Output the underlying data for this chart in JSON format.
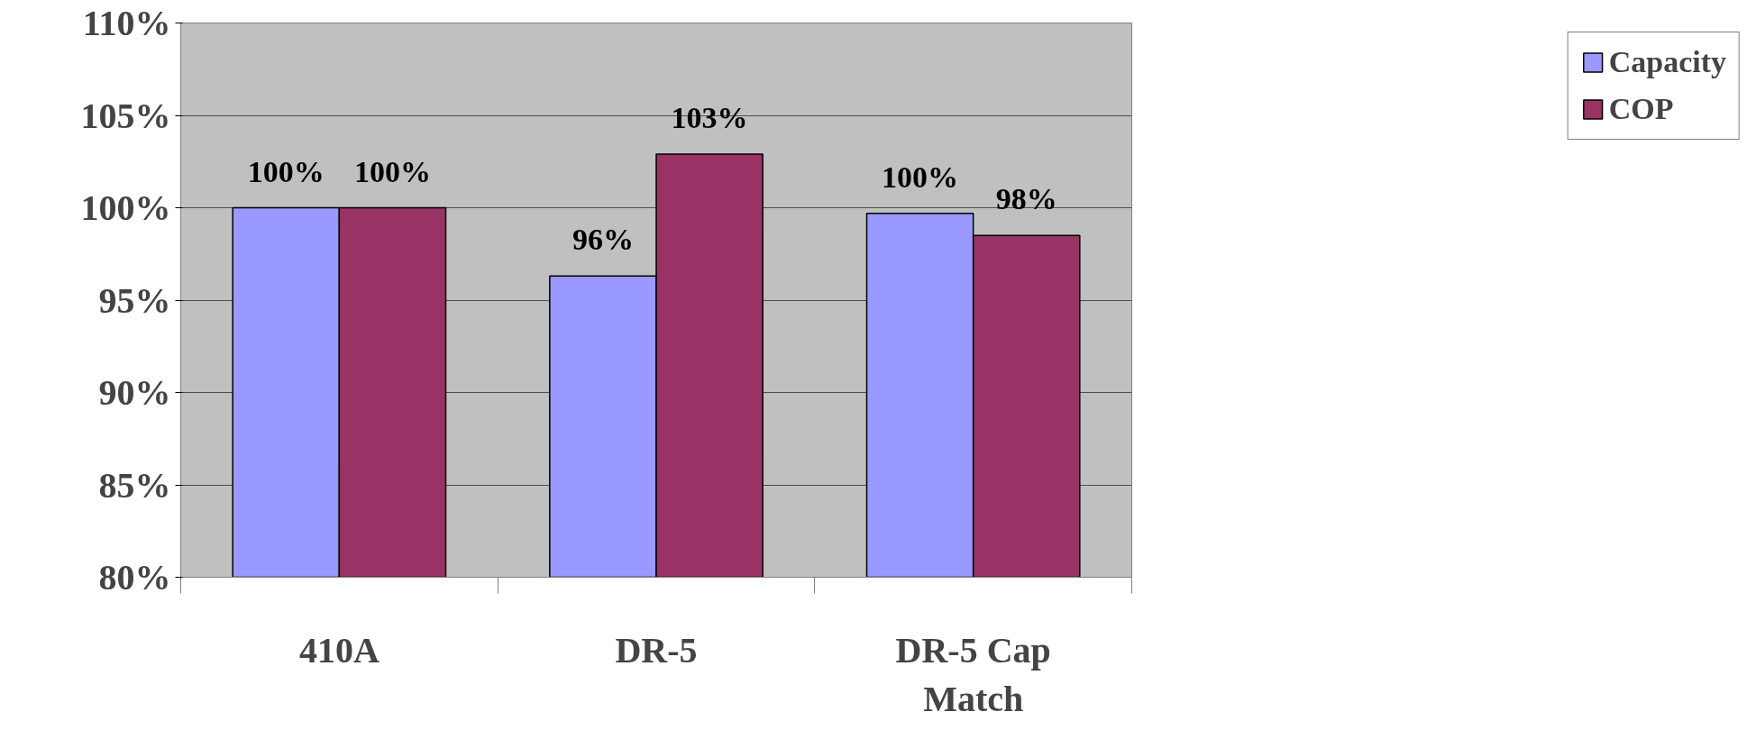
{
  "chart_data": {
    "type": "bar",
    "categories": [
      "410A",
      "DR-5",
      "DR-5 Cap Match"
    ],
    "series": [
      {
        "name": "Capacity",
        "color": "#9999ff",
        "values": [
          100,
          96.3,
          99.7
        ],
        "value_labels": [
          "100%",
          "96%",
          "100%"
        ]
      },
      {
        "name": "COP",
        "color": "#993366",
        "values": [
          100,
          102.9,
          98.5
        ],
        "value_labels": [
          "100%",
          "103%",
          "98%"
        ]
      }
    ],
    "ylim": [
      80,
      110
    ],
    "yticks": [
      {
        "value": 80,
        "label": "80%"
      },
      {
        "value": 85,
        "label": "85%"
      },
      {
        "value": 90,
        "label": "90%"
      },
      {
        "value": 95,
        "label": "95%"
      },
      {
        "value": 100,
        "label": "100%"
      },
      {
        "value": 105,
        "label": "105%"
      },
      {
        "value": 110,
        "label": "110%"
      }
    ],
    "grid": "y",
    "legend": "right"
  }
}
